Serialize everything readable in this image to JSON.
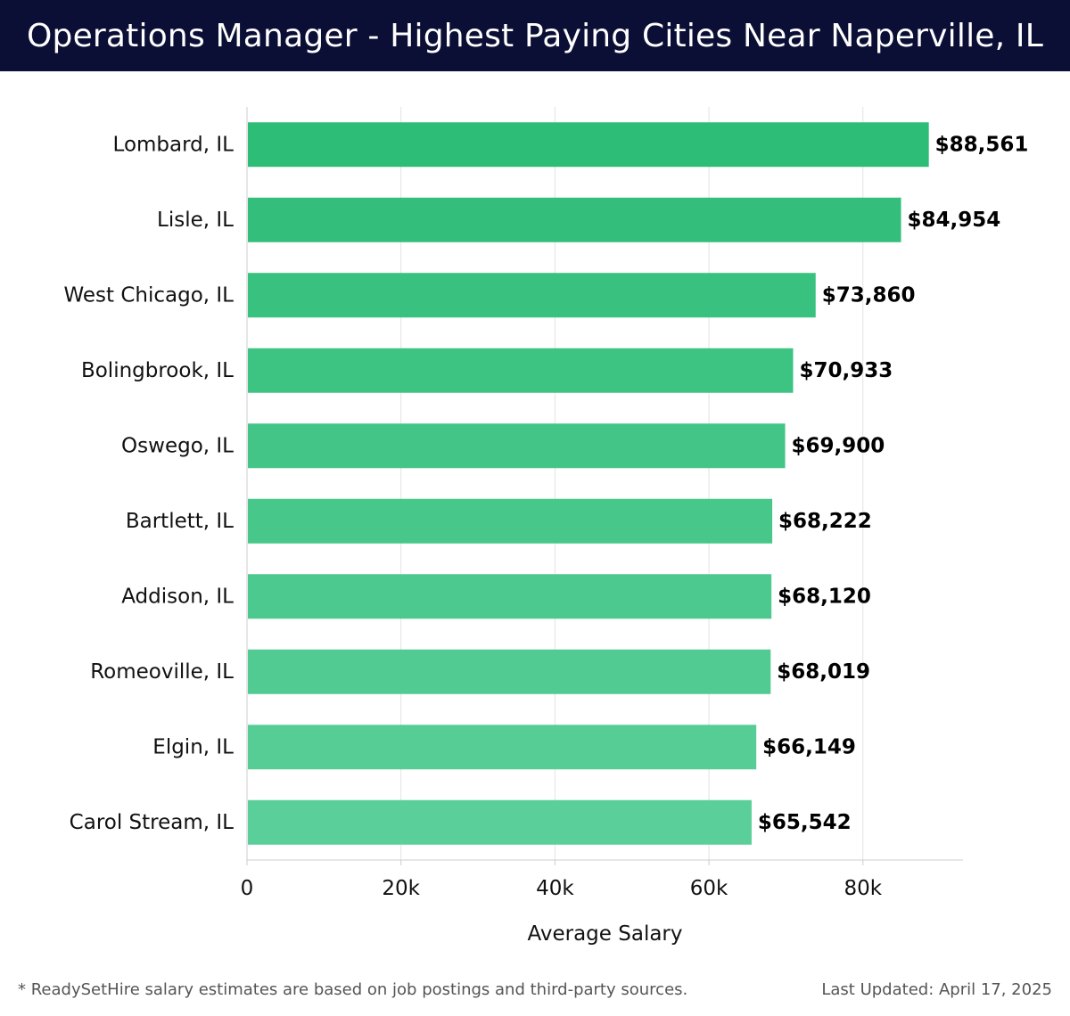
{
  "header": {
    "title": "Operations Manager - Highest Paying Cities Near Naperville, IL"
  },
  "chart_data": {
    "type": "bar",
    "orientation": "horizontal",
    "title": "Operations Manager - Highest Paying Cities Near Naperville, IL",
    "xlabel": "Average Salary",
    "ylabel": "",
    "categories": [
      "Lombard, IL",
      "Lisle, IL",
      "West Chicago, IL",
      "Bolingbrook, IL",
      "Oswego, IL",
      "Bartlett, IL",
      "Addison, IL",
      "Romeoville, IL",
      "Elgin, IL",
      "Carol Stream, IL"
    ],
    "values": [
      88561,
      84954,
      73860,
      70933,
      69900,
      68222,
      68120,
      68019,
      66149,
      65542
    ],
    "value_labels": [
      "$88,561",
      "$84,954",
      "$73,860",
      "$70,933",
      "$69,900",
      "$68,222",
      "$68,120",
      "$68,019",
      "$66,149",
      "$65,542"
    ],
    "xlim": [
      0,
      93000
    ],
    "xticks": [
      0,
      20000,
      40000,
      60000,
      80000
    ],
    "xtick_labels": [
      "0",
      "20k",
      "40k",
      "60k",
      "80k"
    ],
    "grid": "vertical",
    "colors": {
      "top": "#2ebd77",
      "bottom": "#5bcf99"
    }
  },
  "footer": {
    "note": "* ReadySetHire salary estimates are based on job postings and third-party sources.",
    "updated": "Last Updated: April 17, 2025"
  }
}
